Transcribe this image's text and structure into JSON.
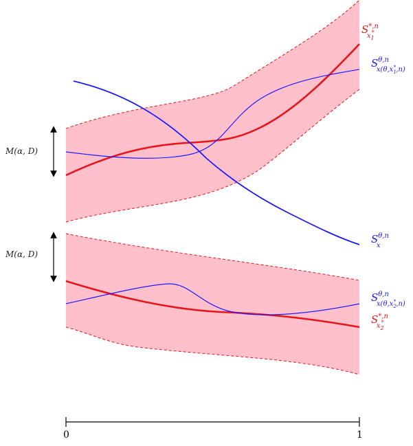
{
  "colors": {
    "band_fill": "#ffc0cb",
    "band_edge": "#e8141c",
    "optimal_curve": "#e8141c",
    "theta_curve": "#1a1aff",
    "axis": "#000000"
  },
  "labels": {
    "upper_margin": "M(α, D)",
    "lower_margin": "M(α, D)",
    "optimal_upper": {
      "main": "S",
      "sup": "*,n",
      "sub": "x",
      "subsub": "1",
      "subsup": "*"
    },
    "theta_upper": {
      "main": "S",
      "sup": "θ,n",
      "sub": "x(θ,x",
      "subsub": "1",
      "subsup": "*",
      "subtail": ",n)"
    },
    "theta_x": {
      "main": "S",
      "sup": "θ,n",
      "sub": "x"
    },
    "theta_lower": {
      "main": "S",
      "sup": "θ,n",
      "sub": "x(θ,x",
      "subsub": "2",
      "subsup": "*",
      "subtail": ",n)"
    },
    "optimal_lower": {
      "main": "S",
      "sup": "*,n",
      "sub": "x",
      "subsub": "2",
      "subsup": "*"
    }
  },
  "axis": {
    "tick_start": "0",
    "tick_end": "1"
  }
}
